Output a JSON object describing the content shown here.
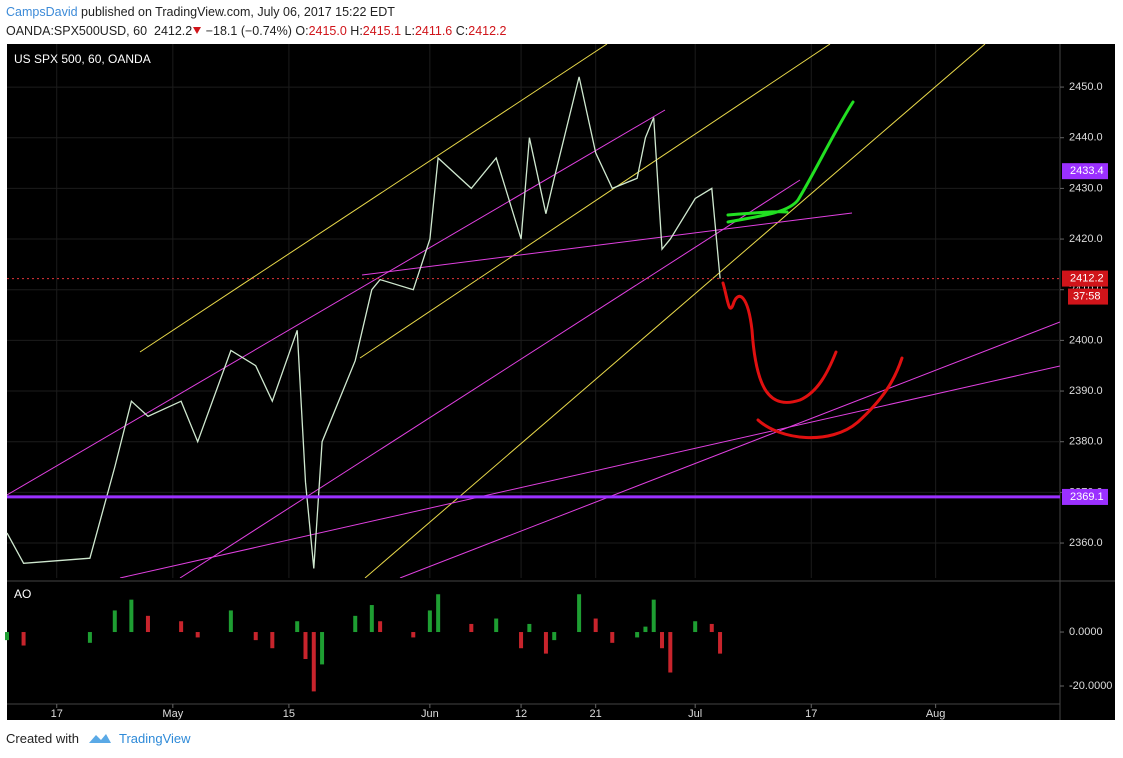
{
  "header": {
    "author": "CampsDavid",
    "published": "published on TradingView.com, July 06, 2017 15:22 EDT",
    "symbol": "OANDA:SPX500USD, 60",
    "last": "2412.2",
    "change": "−18.1 (−0.74%)",
    "open_label": "O:",
    "open": "2415.0",
    "high_label": "H:",
    "high": "2415.1",
    "low_label": "L:",
    "low": "2411.6",
    "close_label": "C:",
    "close": "2412.2"
  },
  "footer": {
    "created": "Created with",
    "brand": "TradingView"
  },
  "chart_data": [
    {
      "type": "line",
      "title": "US SPX 500, 60, OANDA",
      "color": "#cfe8cf",
      "x": [
        "2017-04-11",
        "2017-04-13",
        "2017-04-21",
        "2017-04-24",
        "2017-04-26",
        "2017-04-28",
        "2017-05-02",
        "2017-05-04",
        "2017-05-08",
        "2017-05-11",
        "2017-05-13",
        "2017-05-16",
        "2017-05-17",
        "2017-05-18",
        "2017-05-19",
        "2017-05-23",
        "2017-05-25",
        "2017-05-26",
        "2017-05-30",
        "2017-06-01",
        "2017-06-02",
        "2017-06-06",
        "2017-06-09",
        "2017-06-12",
        "2017-06-13",
        "2017-06-15",
        "2017-06-16",
        "2017-06-19",
        "2017-06-21",
        "2017-06-23",
        "2017-06-26",
        "2017-06-27",
        "2017-06-28",
        "2017-06-29",
        "2017-06-30",
        "2017-07-03",
        "2017-07-05",
        "2017-07-06"
      ],
      "values": [
        2362,
        2356,
        2357,
        2375,
        2388,
        2385,
        2388,
        2380,
        2398,
        2395,
        2388,
        2402,
        2372,
        2355,
        2380,
        2396,
        2410,
        2412,
        2410,
        2420,
        2436,
        2430,
        2436,
        2420,
        2440,
        2425,
        2432,
        2452,
        2437,
        2430,
        2432,
        2440,
        2444,
        2418,
        2420,
        2428,
        2430,
        2412.2
      ],
      "xlim": [
        "2017-04-11",
        "2017-08-16"
      ],
      "ylim": [
        2353.1,
        2458.5
      ],
      "yticks": [
        {
          "value": 2360,
          "label": "2360.0"
        },
        {
          "value": 2370,
          "label": "2370.0"
        },
        {
          "value": 2380,
          "label": "2380.0"
        },
        {
          "value": 2390,
          "label": "2390.0"
        },
        {
          "value": 2400,
          "label": "2400.0"
        },
        {
          "value": 2410,
          "label": "2410.0"
        },
        {
          "value": 2420,
          "label": "2420.0"
        },
        {
          "value": 2430,
          "label": "2430.0"
        },
        {
          "value": 2440,
          "label": "2440.0"
        },
        {
          "value": 2450,
          "label": "2450.0"
        }
      ],
      "grid": true,
      "hlines": [
        {
          "value": 2369.1,
          "color": "#9b30ff"
        },
        {
          "value": 2412.2,
          "color": "#e0343a",
          "dashed": true
        }
      ],
      "price_labels": [
        {
          "value": 2433.4,
          "color": "#9b30ff"
        },
        {
          "value": 2412.2,
          "color": "#d0141a"
        },
        {
          "value": 2369.1,
          "color": "#9b30ff"
        }
      ],
      "countdown": "37:58"
    },
    {
      "type": "histogram",
      "title": "AO",
      "up_color": "#1e9e32",
      "down_color": "#c8242c",
      "x": [
        "2017-04-11",
        "2017-04-13",
        "2017-04-21",
        "2017-04-24",
        "2017-04-26",
        "2017-04-28",
        "2017-05-02",
        "2017-05-04",
        "2017-05-08",
        "2017-05-11",
        "2017-05-13",
        "2017-05-16",
        "2017-05-17",
        "2017-05-18",
        "2017-05-19",
        "2017-05-23",
        "2017-05-25",
        "2017-05-26",
        "2017-05-30",
        "2017-06-01",
        "2017-06-02",
        "2017-06-06",
        "2017-06-09",
        "2017-06-12",
        "2017-06-13",
        "2017-06-15",
        "2017-06-16",
        "2017-06-19",
        "2017-06-21",
        "2017-06-23",
        "2017-06-26",
        "2017-06-27",
        "2017-06-28",
        "2017-06-29",
        "2017-06-30",
        "2017-07-03",
        "2017-07-05",
        "2017-07-06"
      ],
      "values": [
        -3,
        -5,
        -4,
        8,
        12,
        6,
        4,
        -2,
        8,
        -3,
        -6,
        4,
        -10,
        -22,
        -12,
        6,
        10,
        4,
        -2,
        8,
        14,
        3,
        5,
        -6,
        3,
        -8,
        -3,
        14,
        5,
        -4,
        -2,
        2,
        12,
        -6,
        -15,
        4,
        3,
        -8
      ],
      "xlim": [
        "2017-04-11",
        "2017-08-16"
      ],
      "ylim": [
        -26.3,
        17.8
      ],
      "yticks": [
        {
          "value": 0,
          "label": "0.0000"
        },
        {
          "value": -20,
          "label": "-20.0000"
        }
      ],
      "xticks": [
        {
          "value": "2017-04-17",
          "label": "17"
        },
        {
          "value": "2017-05-01",
          "label": "May"
        },
        {
          "value": "2017-05-15",
          "label": "15"
        },
        {
          "value": "2017-06-01",
          "label": "Jun"
        },
        {
          "value": "2017-06-12",
          "label": "12"
        },
        {
          "value": "2017-06-21",
          "label": "21"
        },
        {
          "value": "2017-07-03",
          "label": "Jul"
        },
        {
          "value": "2017-07-17",
          "label": "17"
        },
        {
          "value": "2017-08-01",
          "label": "Aug"
        }
      ]
    }
  ]
}
